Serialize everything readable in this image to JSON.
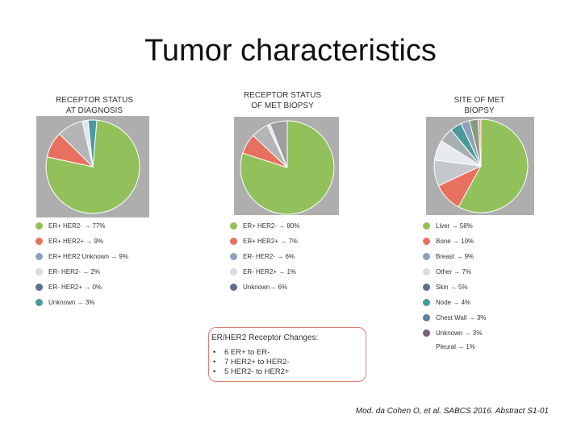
{
  "title": "Tumor characteristics",
  "colors": {
    "green": "#92c15b",
    "red": "#e8705f",
    "blue_grey": "#8ea1b8",
    "light": "#d5dde8",
    "dark_blue": "#5d6f8b",
    "teal": "#4a9a9c",
    "grey": "#b5b5b5",
    "cyan_blue": "#5e7fa6",
    "olive": "#8a9a7e",
    "purple": "#7e6178",
    "pink": "#e7a59c",
    "panel": "#aeaeae"
  },
  "chart_data": [
    {
      "type": "pie",
      "title": "RECEPTOR STATUS AT DIAGNOSIS",
      "slices": [
        {
          "label": "ER+ HER2- → 77%",
          "value": 77,
          "color": "#92c15b"
        },
        {
          "label": "ER+ HER2+ → 9%",
          "value": 9,
          "color": "#e8705f"
        },
        {
          "label": "ER+ HER2 Unknown → 9%",
          "value": 9,
          "color": "#b5b5b5"
        },
        {
          "label": "ER- HER2- → 2%",
          "value": 2,
          "color": "#dfe5ee"
        },
        {
          "label": "ER- HER2+ → 0%",
          "value": 0,
          "color": "#5d6f8b"
        },
        {
          "label": "Unknown → 3%",
          "value": 3,
          "color": "#4a9a9c"
        }
      ]
    },
    {
      "type": "pie",
      "title": "RECEPTOR STATUS OF MET BIOPSY",
      "slices": [
        {
          "label": "ER+ HER2- → 80%",
          "value": 80,
          "color": "#92c15b"
        },
        {
          "label": "ER+ HER2+ → 7%",
          "value": 7,
          "color": "#e8705f"
        },
        {
          "label": "ER- HER2- → 6%",
          "value": 6,
          "color": "#b5b5b5"
        },
        {
          "label": "ER- HER2+ → 1%",
          "value": 1,
          "color": "#dfe5ee"
        },
        {
          "label": "Unknown → 6%",
          "value": 6,
          "color": "#9e9e9e"
        }
      ]
    },
    {
      "type": "pie",
      "title": "SITE OF MET BIOPSY",
      "slices": [
        {
          "label": "Liver → 58%",
          "value": 58,
          "color": "#92c15b"
        },
        {
          "label": "Bone → 10%",
          "value": 10,
          "color": "#e8705f"
        },
        {
          "label": "Breast → 9%",
          "value": 9,
          "color": "#c4c8cc"
        },
        {
          "label": "Other → 7%",
          "value": 7,
          "color": "#e6eaef"
        },
        {
          "label": "Skin → 5%",
          "value": 5,
          "color": "#a8afb3"
        },
        {
          "label": "Node → 4%",
          "value": 4,
          "color": "#4a9a9c"
        },
        {
          "label": "Chest Wall → 3%",
          "value": 3,
          "color": "#8ea1b8"
        },
        {
          "label": "Unknown → 3%",
          "value": 3,
          "color": "#8a9a7e"
        },
        {
          "label": "Pleural → 1%",
          "value": 1,
          "color": "#e7a59c"
        }
      ]
    }
  ],
  "legends": {
    "diagnosis": [
      {
        "label": "ER+ HER2- → 77%",
        "color": "#92c15b"
      },
      {
        "label": "ER+ HER2+ → 9%",
        "color": "#e8705f"
      },
      {
        "label": "ER+ HER2 Unknown → 9%",
        "color": "#8ea1b8"
      },
      {
        "label": "ER- HER2- → 2%",
        "color": "#d5dde8"
      },
      {
        "label": "ER- HER2+ → 0%",
        "color": "#5d6f8b"
      },
      {
        "label": "Unknown → 3%",
        "color": "#4a9a9c"
      }
    ],
    "met_biopsy": [
      {
        "label": "ER+ HER2- → 80%",
        "color": "#92c15b"
      },
      {
        "label": "ER+ HER2+ → 7%",
        "color": "#e8705f"
      },
      {
        "label": "ER- HER2- → 6%",
        "color": "#8ea1b8"
      },
      {
        "label": "ER- HER2+ → 1%",
        "color": "#d5dde8"
      },
      {
        "label": "Unknown→ 6%",
        "color": "#5d6f8b"
      }
    ],
    "site": [
      {
        "label": "Liver → 58%",
        "color": "#92c15b"
      },
      {
        "label": "Bone → 10%",
        "color": "#e8705f"
      },
      {
        "label": "Breast → 9%",
        "color": "#8ea1b8"
      },
      {
        "label": "Other → 7%",
        "color": "#d5dde8"
      },
      {
        "label": "Skin → 5%",
        "color": "#5d6f8b"
      },
      {
        "label": "Node → 4%",
        "color": "#4a9a9c"
      },
      {
        "label": "Chest Wall → 3%",
        "color": "#5e7fa6"
      },
      {
        "label": "Unknown → 3%",
        "color": "#7e6178"
      }
    ],
    "pleural": "Pleural → 1%"
  },
  "receptor_changes": {
    "title": "ER/HER2 Receptor Changes:",
    "items": [
      "6 ER+ to ER-",
      "7 HER2+ to HER2-",
      "5 HER2- to HER2+"
    ]
  },
  "citation": "Mod. da Cohen O, et al. SABCS 2016. Abstract S1-01"
}
